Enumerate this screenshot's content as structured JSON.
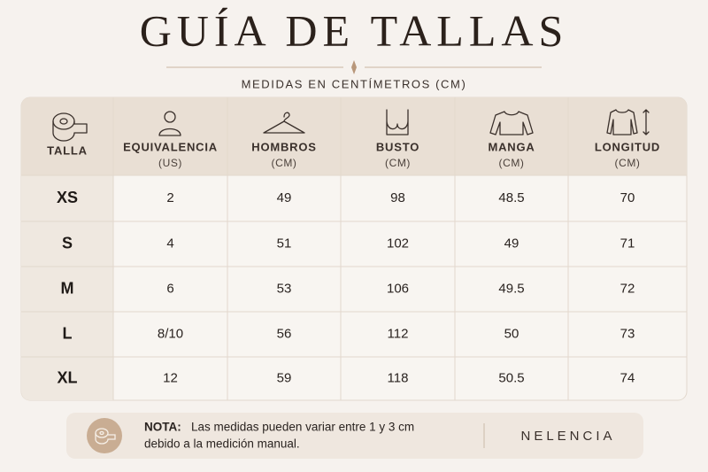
{
  "header": {
    "title": "GUÍA DE TALLAS",
    "subtitle": "MEDIDAS EN CENTÍMETROS (CM)"
  },
  "table": {
    "columns": [
      {
        "label": "TALLA"
      },
      {
        "label": "EQUIVALENCIA",
        "unit": "(US)"
      },
      {
        "label": "HOMBROS",
        "unit": "(CM)"
      },
      {
        "label": "BUSTO",
        "unit": "(CM)"
      },
      {
        "label": "MANGA",
        "unit": "(CM)"
      },
      {
        "label": "LONGITUD",
        "unit": "(CM)"
      }
    ],
    "rows": [
      [
        "XS",
        "2",
        "49",
        "98",
        "48.5",
        "70"
      ],
      [
        "S",
        "4",
        "51",
        "102",
        "49",
        "71"
      ],
      [
        "M",
        "6",
        "53",
        "106",
        "49.5",
        "72"
      ],
      [
        "L",
        "8/10",
        "56",
        "112",
        "50",
        "73"
      ],
      [
        "XL",
        "12",
        "59",
        "118",
        "50.5",
        "74"
      ]
    ]
  },
  "note": {
    "label": "NOTA:",
    "lines": [
      "Las medidas pueden variar entre 1 y 3 cm",
      "debido a la medición manual."
    ]
  },
  "brand": "NELENCIA"
}
